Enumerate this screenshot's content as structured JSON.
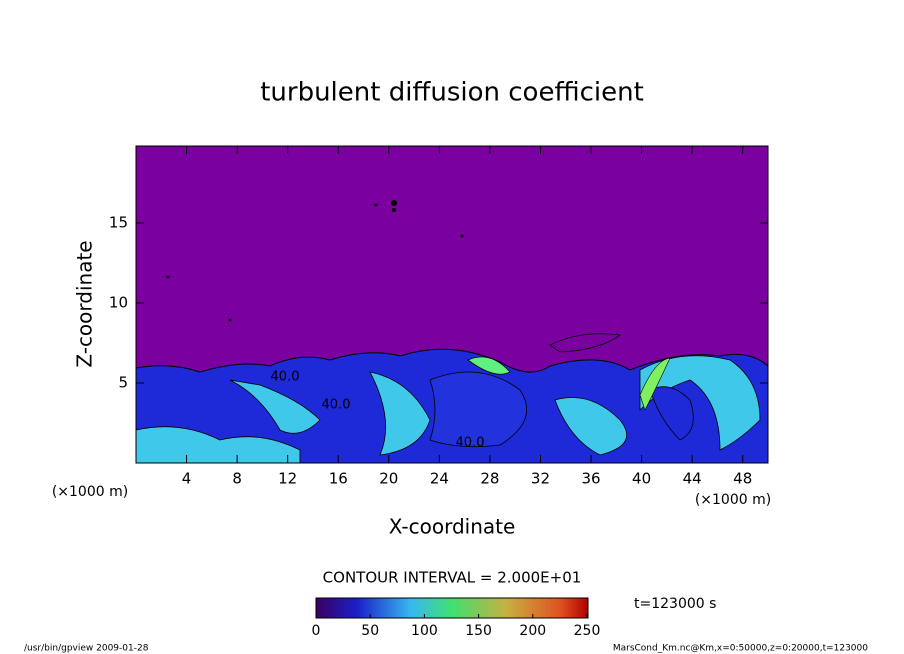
{
  "chart_data": {
    "type": "contour",
    "title": "turbulent diffusion coefficient",
    "x_label": "X-coordinate",
    "y_label": "Z-coordinate",
    "x_unit_label": "(×1000 m)",
    "y_unit_label": "(×1000 m)",
    "xlim": [
      0,
      50
    ],
    "xticks": [
      4,
      8,
      12,
      16,
      20,
      24,
      28,
      32,
      36,
      40,
      44,
      48
    ],
    "ylim": [
      0,
      20
    ],
    "yticks": [
      5,
      10,
      15
    ],
    "contour_labels": [
      "40.0",
      "40.0",
      "40.0"
    ],
    "colorbar": {
      "title": "CONTOUR INTERVAL = 2.000E+01",
      "lim": [
        0,
        250
      ],
      "ticks": [
        0,
        50,
        100,
        150,
        200,
        250
      ]
    },
    "time_label": "t=123000 s",
    "footer_left": "/usr/bin/gpview   2009-01-28",
    "footer_right": "MarsCond_Km.nc@Km,x=0:50000,z=0:20000,t=123000"
  }
}
